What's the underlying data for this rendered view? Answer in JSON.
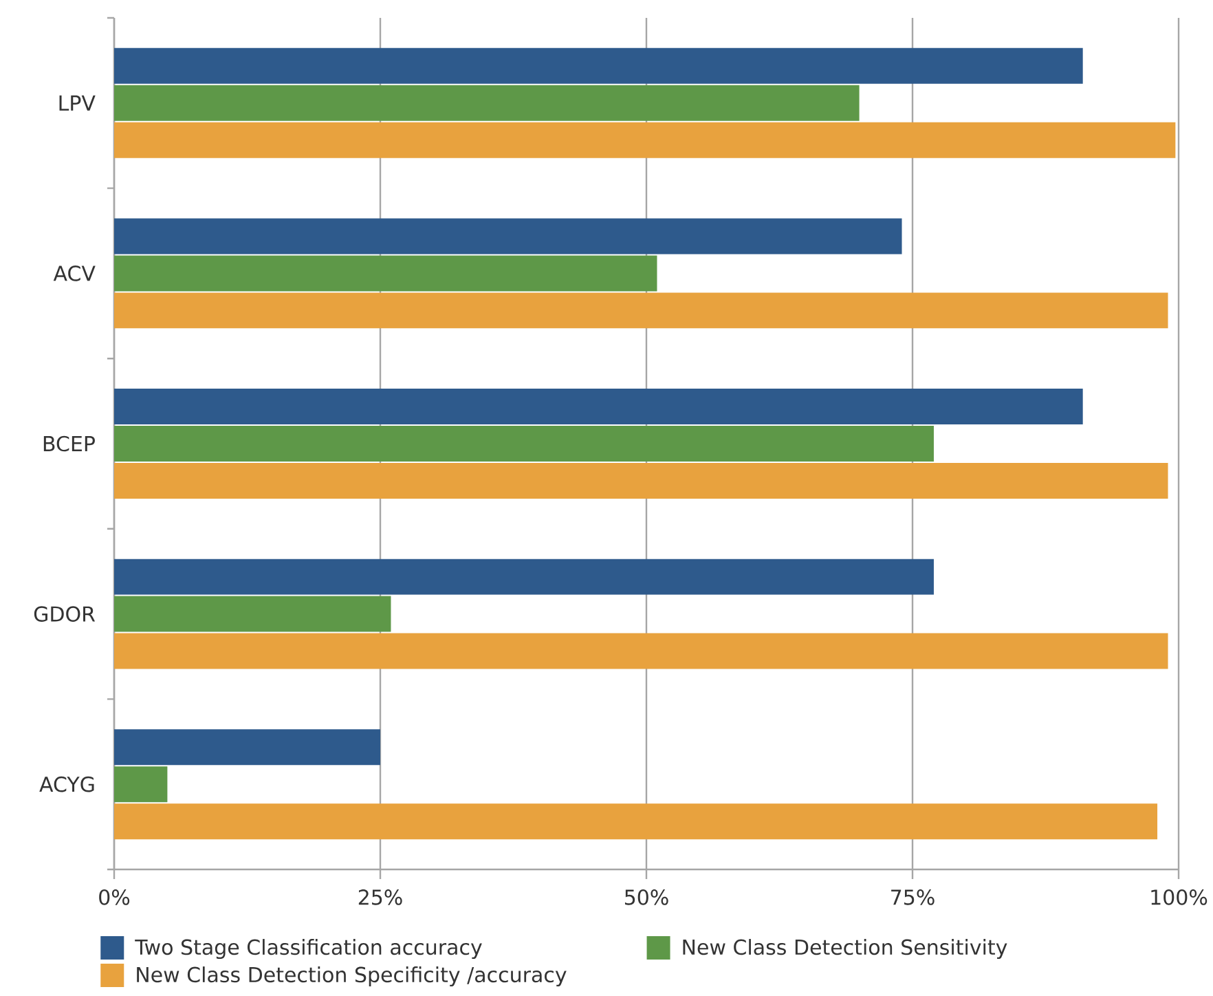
{
  "chart_data": {
    "type": "bar",
    "orientation": "horizontal",
    "categories": [
      "LPV",
      "ACV",
      "BCEP",
      "GDOR",
      "ACYG"
    ],
    "series": [
      {
        "name": "Two Stage Classification accuracy",
        "color": "#2e5a8c",
        "values": [
          91,
          74,
          91,
          77,
          25
        ]
      },
      {
        "name": "New Class Detection Sensitivity",
        "color": "#5e9848",
        "values": [
          70,
          51,
          77,
          26,
          5
        ]
      },
      {
        "name": "New Class Detection Specificity /accuracy",
        "color": "#e8a23e",
        "values": [
          99.7,
          99,
          99,
          99,
          98
        ]
      }
    ],
    "xlim": [
      0,
      100
    ],
    "xticks": [
      {
        "value": 0,
        "label": "0%"
      },
      {
        "value": 25,
        "label": "25%"
      },
      {
        "value": 50,
        "label": "50%"
      },
      {
        "value": 75,
        "label": "75%"
      },
      {
        "value": 100,
        "label": "100%"
      }
    ],
    "grid": "x",
    "legend": "bottom"
  }
}
